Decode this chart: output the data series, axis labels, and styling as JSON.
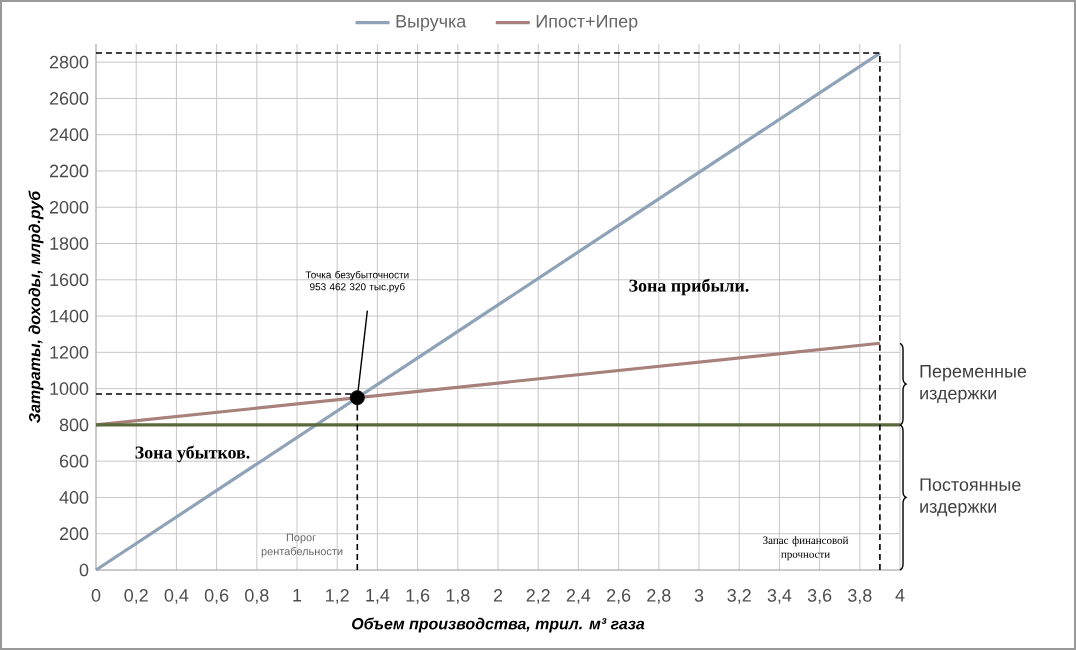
{
  "chart_data": {
    "type": "line",
    "xlabel": "Объем производства, трил. м³ газа",
    "ylabel": "Затраты, доходы, млрд.руб",
    "xlim": [
      0,
      4
    ],
    "ylim": [
      0,
      2900
    ],
    "xticks": [
      0,
      {
        "value": 0.2,
        "label": "0,2"
      },
      {
        "value": 0.4,
        "label": "0,4"
      },
      {
        "value": 0.6,
        "label": "0,6"
      },
      {
        "value": 0.8,
        "label": "0,8"
      },
      1,
      {
        "value": 1.2,
        "label": "1,2"
      },
      {
        "value": 1.4,
        "label": "1,4"
      },
      {
        "value": 1.6,
        "label": "1,6"
      },
      {
        "value": 1.8,
        "label": "1,8"
      },
      2,
      {
        "value": 2.2,
        "label": "2,2"
      },
      {
        "value": 2.4,
        "label": "2,4"
      },
      {
        "value": 2.6,
        "label": "2,6"
      },
      {
        "value": 2.8,
        "label": "2,8"
      },
      3,
      {
        "value": 3.2,
        "label": "3,2"
      },
      {
        "value": 3.4,
        "label": "3,4"
      },
      {
        "value": 3.6,
        "label": "3,6"
      },
      {
        "value": 3.8,
        "label": "3,8"
      },
      4
    ],
    "yticks": [
      0,
      200,
      400,
      600,
      800,
      1000,
      1200,
      1400,
      1600,
      1800,
      2000,
      2200,
      2400,
      2600,
      2800
    ],
    "grid": true,
    "legend": "top",
    "marker": "none",
    "line_style": "solid",
    "series": [
      {
        "name": "Выручка",
        "color": "#8fa2b8",
        "x": [
          0,
          3.9
        ],
        "values": [
          0,
          2850
        ]
      },
      {
        "name": "Ипост+Ипер",
        "color": "#a8807c",
        "x": [
          0,
          3.9
        ],
        "values": [
          800,
          1250
        ]
      },
      {
        "color": "#5b6a3e",
        "x": [
          0,
          4
        ],
        "values": [
          800,
          800
        ]
      },
      {
        "type": "scatter",
        "marker": "circle",
        "color": "#000000",
        "x": [
          1.3
        ],
        "values": [
          950
        ]
      },
      {
        "color": "#000000",
        "line_style": "dashed",
        "x": [
          0,
          3.9
        ],
        "values": [
          2850,
          2850
        ]
      },
      {
        "color": "#000000",
        "line_style": "dashed",
        "x": [
          3.9,
          3.9
        ],
        "values": [
          0,
          2850
        ]
      },
      {
        "color": "#000000",
        "line_style": "dashed",
        "x": [
          0,
          1.3
        ],
        "values": [
          970,
          970
        ]
      },
      {
        "color": "#000000",
        "line_style": "dashed",
        "x": [
          1.3,
          1.3
        ],
        "values": [
          0,
          970
        ]
      }
    ],
    "annotations": [
      "Точка безубыточности 953 462 320 тыс.руб",
      "Зона прибыли.",
      "Зона убытков.",
      "Порог рентабельности",
      "Запас финансовой прочности",
      "Переменные издержки",
      "Постоянные издержки"
    ]
  }
}
